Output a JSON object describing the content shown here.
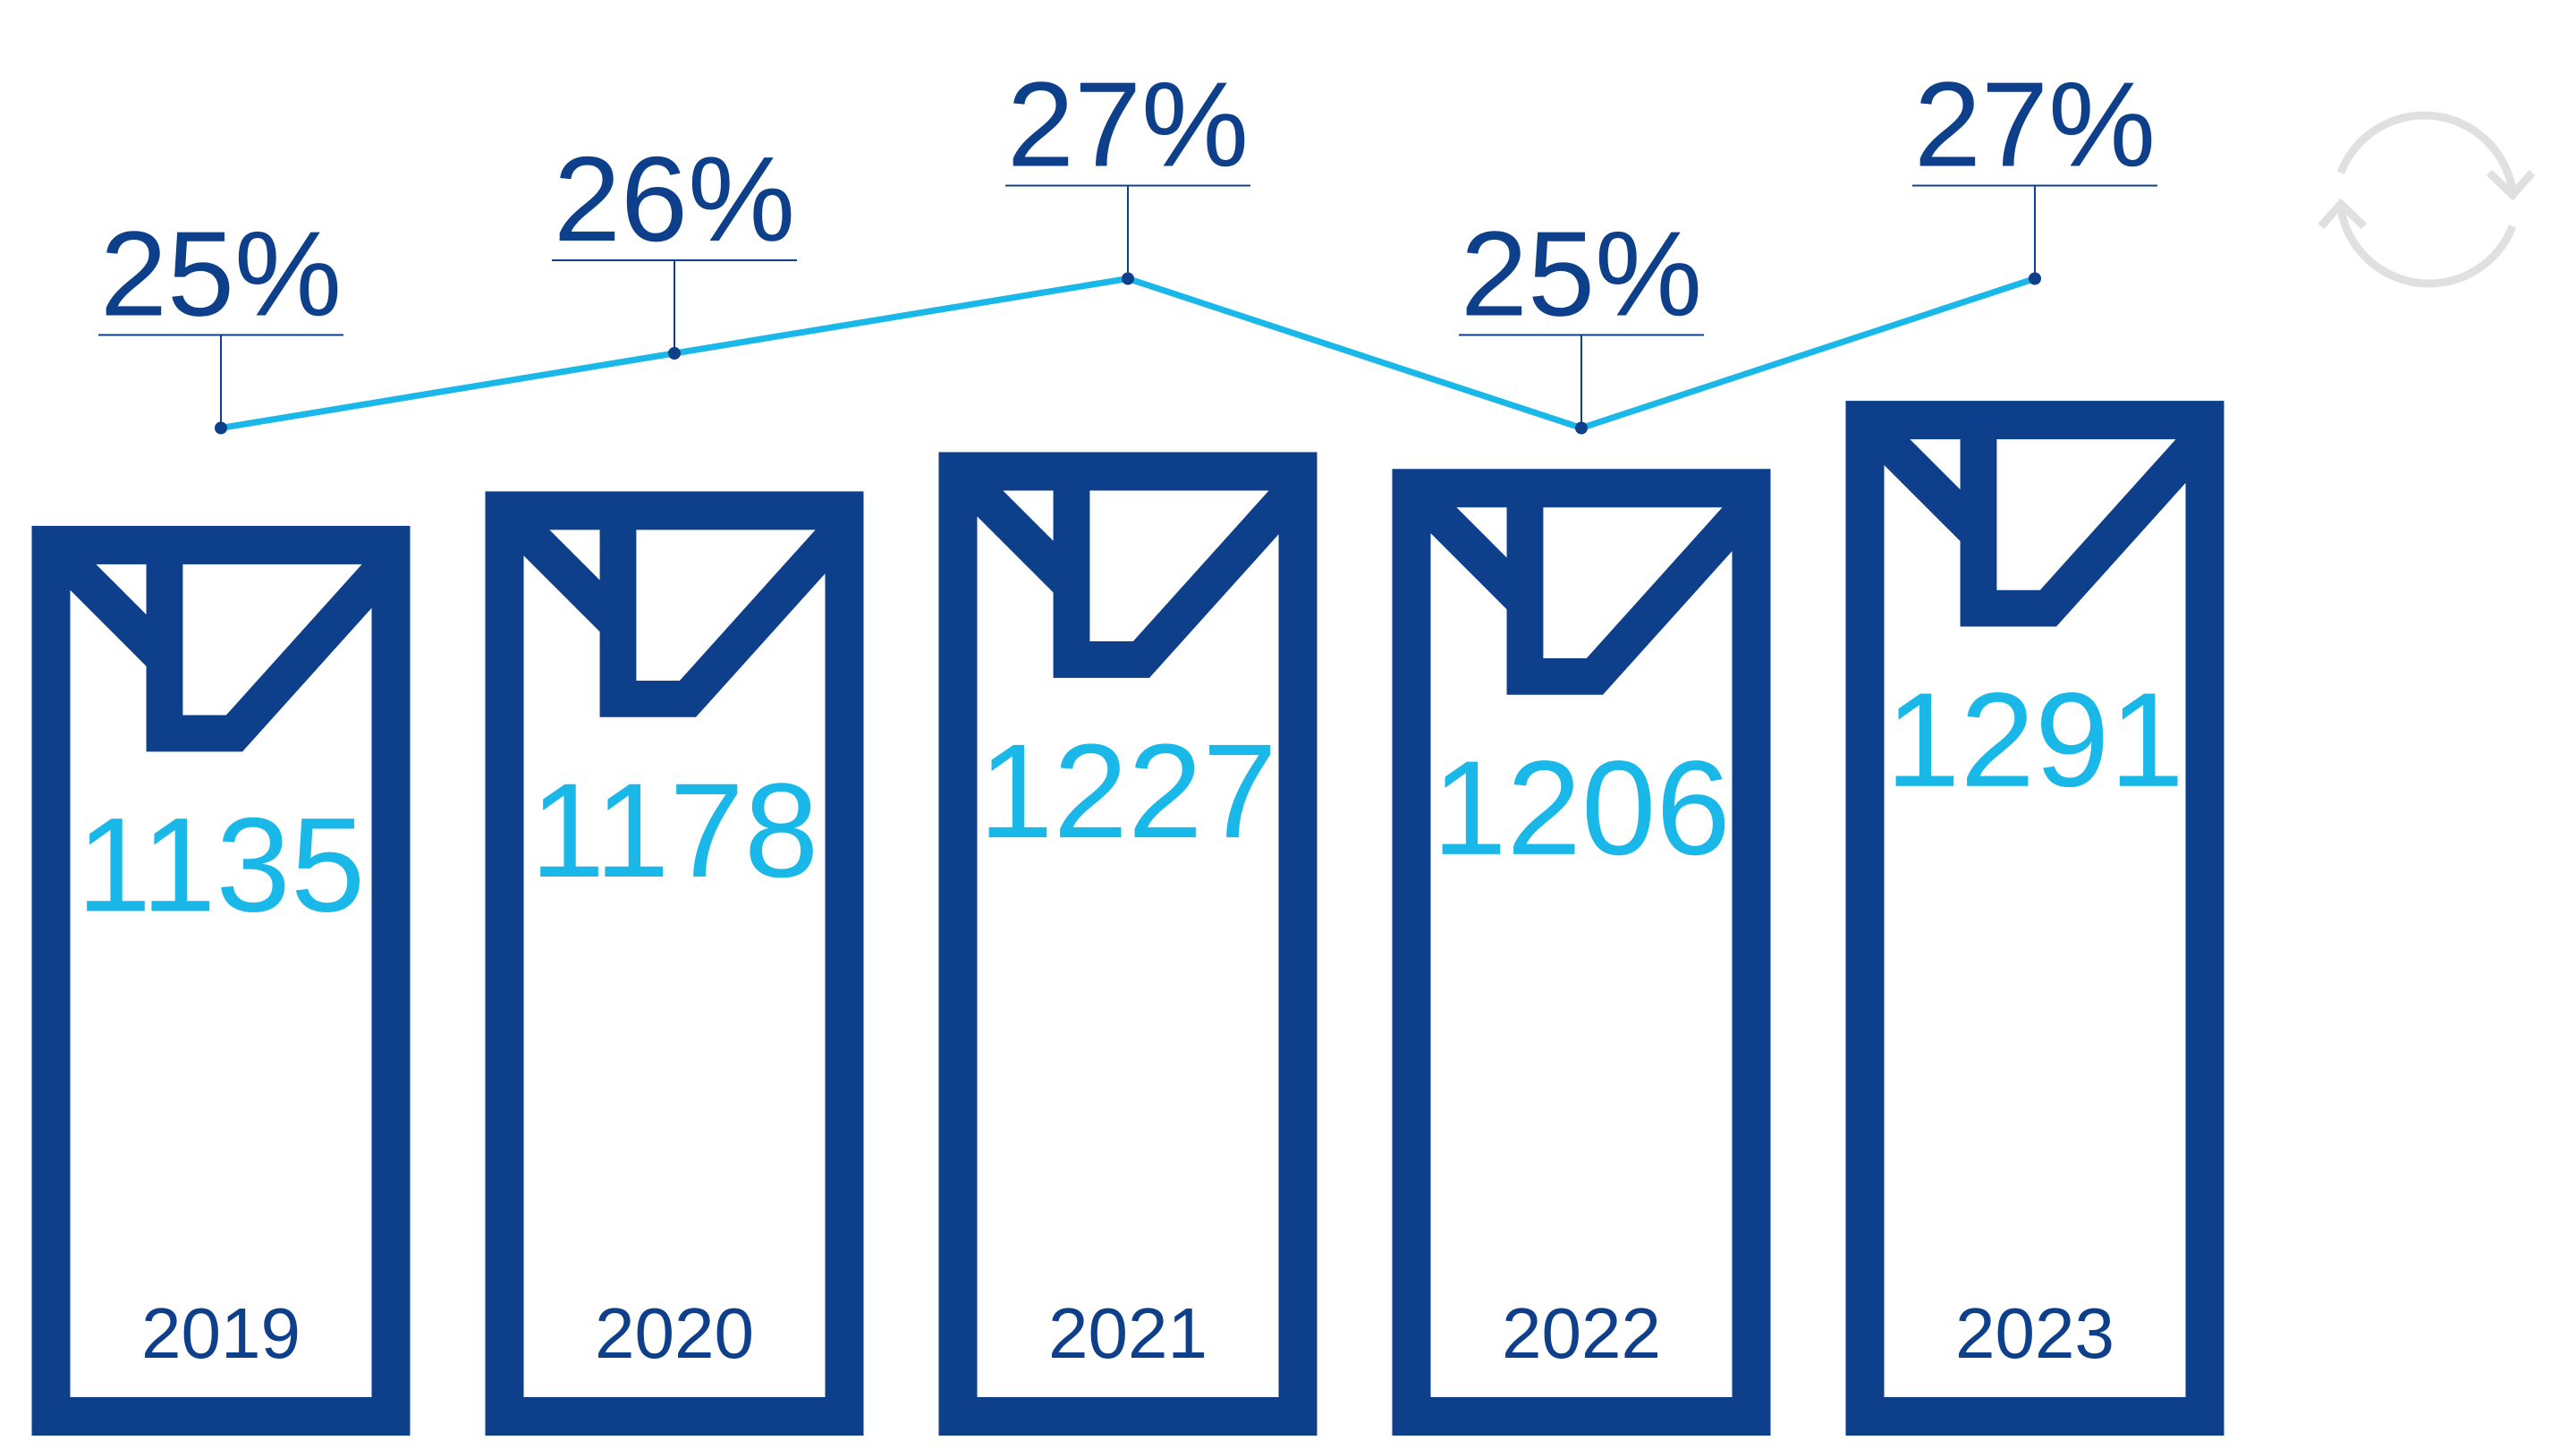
{
  "chart_data": [
    {
      "type": "bar",
      "categories": [
        "2019",
        "2020",
        "2021",
        "2022",
        "2023"
      ],
      "values": [
        1135,
        1178,
        1227,
        1206,
        1291
      ],
      "color": "#0d3f8b",
      "label_color": "#1ab8e8",
      "ylim": [
        0,
        1800
      ]
    },
    {
      "type": "line",
      "values": [
        25,
        26,
        27,
        25,
        27
      ],
      "value_labels": [
        "25%",
        "26%",
        "27%",
        "25%",
        "27%"
      ],
      "color": "#1ab8e8",
      "ylim": [
        20,
        30
      ]
    }
  ]
}
